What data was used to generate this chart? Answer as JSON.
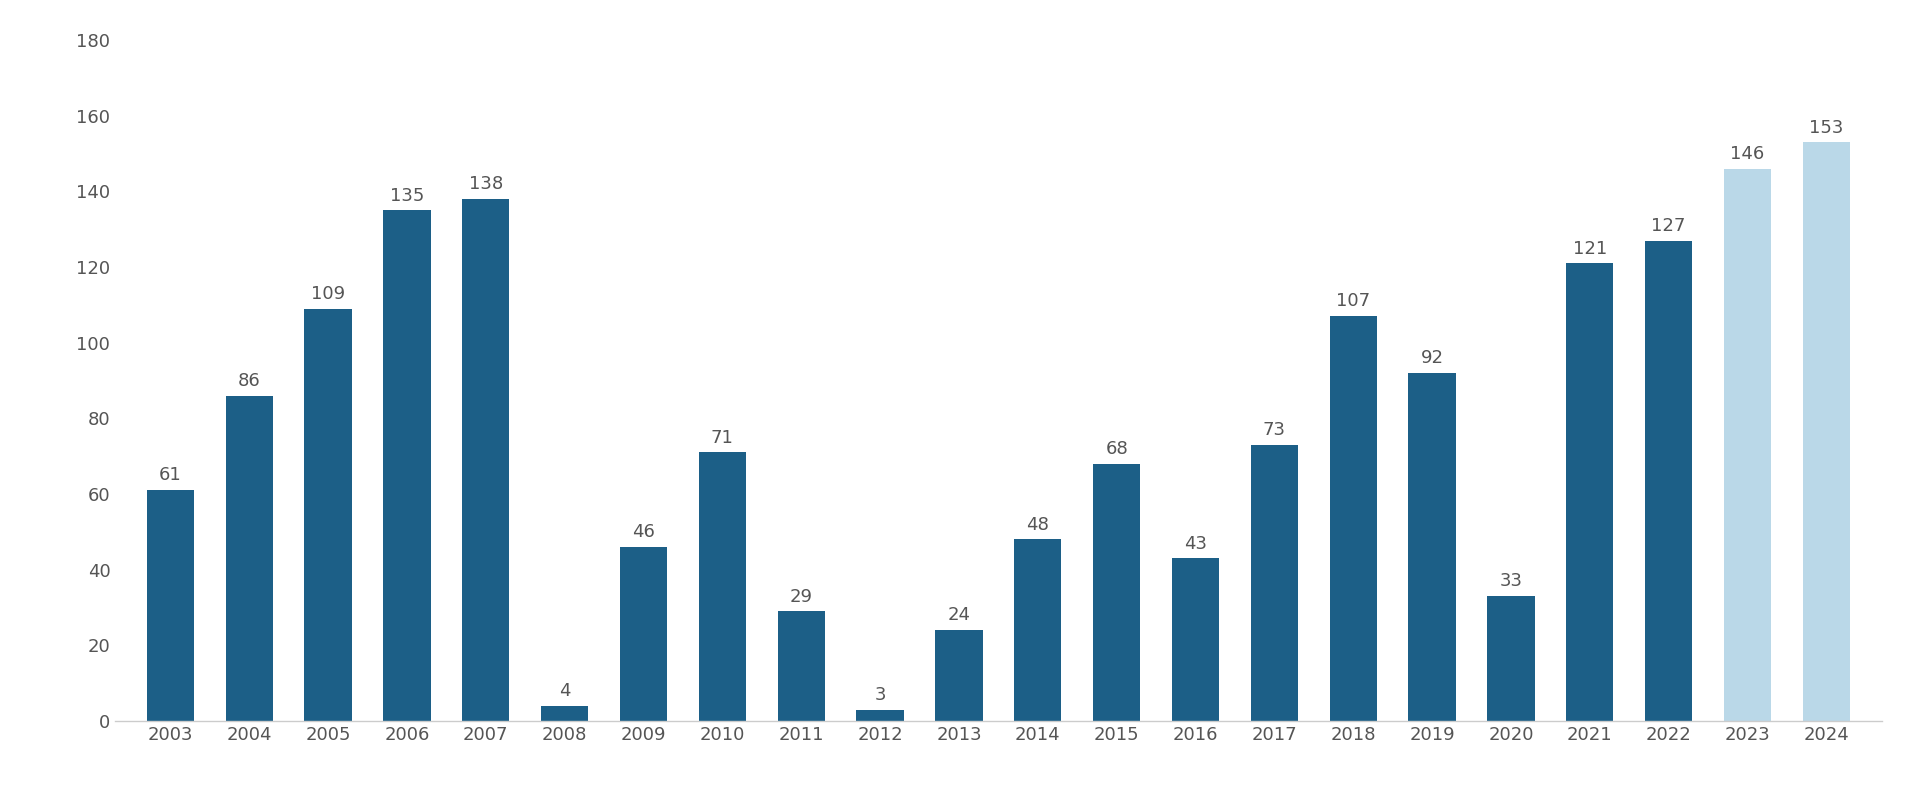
{
  "years": [
    2003,
    2004,
    2005,
    2006,
    2007,
    2008,
    2009,
    2010,
    2011,
    2012,
    2013,
    2014,
    2015,
    2016,
    2017,
    2018,
    2019,
    2020,
    2021,
    2022,
    2023,
    2024
  ],
  "values": [
    61,
    86,
    109,
    135,
    138,
    4,
    46,
    71,
    29,
    3,
    24,
    48,
    68,
    43,
    73,
    107,
    92,
    33,
    121,
    127,
    146,
    153
  ],
  "bar_colors": [
    "#1c5f87",
    "#1c5f87",
    "#1c5f87",
    "#1c5f87",
    "#1c5f87",
    "#1c5f87",
    "#1c5f87",
    "#1c5f87",
    "#1c5f87",
    "#1c5f87",
    "#1c5f87",
    "#1c5f87",
    "#1c5f87",
    "#1c5f87",
    "#1c5f87",
    "#1c5f87",
    "#1c5f87",
    "#1c5f87",
    "#1c5f87",
    "#1c5f87",
    "#bad8e8",
    "#bad8e8"
  ],
  "ylim": [
    0,
    180
  ],
  "yticks": [
    0,
    20,
    40,
    60,
    80,
    100,
    120,
    140,
    160,
    180
  ],
  "background_color": "#ffffff",
  "bar_value_color": "#555555",
  "bar_value_fontsize": 13,
  "tick_fontsize": 13,
  "spine_color": "#cccccc",
  "bar_width": 0.6,
  "figsize": [
    19.2,
    8.01
  ],
  "dpi": 100
}
